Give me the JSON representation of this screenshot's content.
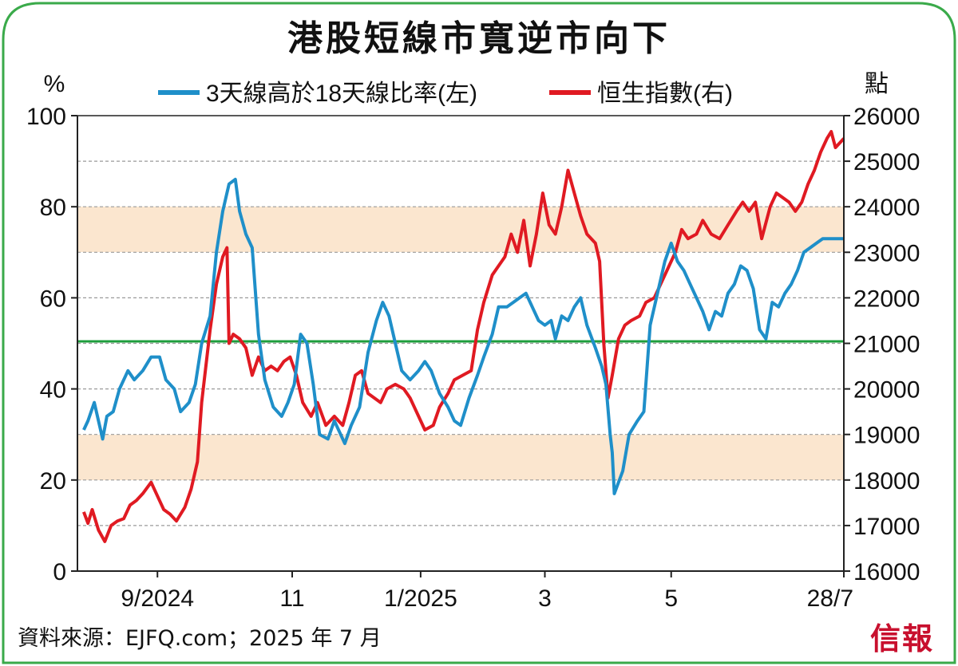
{
  "title": "港股短線市寬逆市向下",
  "source": "資料來源：EJFQ.com；2025 年 7 月",
  "brand": "信報",
  "chart_data": {
    "type": "line",
    "left_unit": "%",
    "right_unit": "點",
    "ylim_left": [
      0,
      100
    ],
    "ylim_right": [
      16000,
      26000
    ],
    "yticks_left": [
      "0",
      "20",
      "40",
      "60",
      "80",
      "100"
    ],
    "yticks_right": [
      "16000",
      "17000",
      "18000",
      "19000",
      "20000",
      "21000",
      "22000",
      "23000",
      "24000",
      "25000",
      "26000"
    ],
    "xticks": [
      "9/2024",
      "11",
      "1/2025",
      "3",
      "5",
      "28/7"
    ],
    "bands_left": [
      [
        20,
        30
      ],
      [
        70,
        80
      ]
    ],
    "reference_line_left": 50.5,
    "colors": {
      "breadth": "#1f8fc9",
      "hsi": "#e01a22",
      "reference": "#1e9e3c",
      "band": "#fbe6cf",
      "frame": "#3aaa4a"
    },
    "series": [
      {
        "name": "3天線高於18天線比率(左)",
        "axis": "left",
        "points": [
          [
            "2024-08-01",
            31
          ],
          [
            "2024-08-03",
            33
          ],
          [
            "2024-08-06",
            37
          ],
          [
            "2024-08-10",
            29
          ],
          [
            "2024-08-12",
            34
          ],
          [
            "2024-08-15",
            35
          ],
          [
            "2024-08-18",
            40
          ],
          [
            "2024-08-22",
            44
          ],
          [
            "2024-08-25",
            42
          ],
          [
            "2024-08-29",
            44
          ],
          [
            "2024-09-02",
            47
          ],
          [
            "2024-09-06",
            47
          ],
          [
            "2024-09-09",
            42
          ],
          [
            "2024-09-13",
            40
          ],
          [
            "2024-09-16",
            35
          ],
          [
            "2024-09-20",
            37
          ],
          [
            "2024-09-23",
            41
          ],
          [
            "2024-09-26",
            50
          ],
          [
            "2024-09-30",
            56
          ],
          [
            "2024-10-03",
            70
          ],
          [
            "2024-10-06",
            79
          ],
          [
            "2024-10-09",
            85
          ],
          [
            "2024-10-12",
            86
          ],
          [
            "2024-10-14",
            79
          ],
          [
            "2024-10-17",
            74
          ],
          [
            "2024-10-20",
            71
          ],
          [
            "2024-10-23",
            52
          ],
          [
            "2024-10-26",
            42
          ],
          [
            "2024-10-30",
            36
          ],
          [
            "2024-11-03",
            34
          ],
          [
            "2024-11-06",
            37
          ],
          [
            "2024-11-09",
            41
          ],
          [
            "2024-11-12",
            52
          ],
          [
            "2024-11-15",
            50
          ],
          [
            "2024-11-18",
            41
          ],
          [
            "2024-11-21",
            30
          ],
          [
            "2024-11-25",
            29
          ],
          [
            "2024-11-28",
            33
          ],
          [
            "2024-12-01",
            30
          ],
          [
            "2024-12-03",
            28
          ],
          [
            "2024-12-06",
            32
          ],
          [
            "2024-12-10",
            36
          ],
          [
            "2024-12-14",
            48
          ],
          [
            "2024-12-18",
            55
          ],
          [
            "2024-12-21",
            59
          ],
          [
            "2024-12-24",
            56
          ],
          [
            "2024-12-27",
            50
          ],
          [
            "2024-12-30",
            44
          ],
          [
            "2025-01-03",
            42
          ],
          [
            "2025-01-07",
            44
          ],
          [
            "2025-01-10",
            46
          ],
          [
            "2025-01-13",
            44
          ],
          [
            "2025-01-17",
            39
          ],
          [
            "2025-01-21",
            36
          ],
          [
            "2025-01-24",
            33
          ],
          [
            "2025-01-27",
            32
          ],
          [
            "2025-01-31",
            38
          ],
          [
            "2025-02-04",
            43
          ],
          [
            "2025-02-07",
            47
          ],
          [
            "2025-02-11",
            52
          ],
          [
            "2025-02-14",
            58
          ],
          [
            "2025-02-18",
            58
          ],
          [
            "2025-02-21",
            59
          ],
          [
            "2025-02-24",
            60
          ],
          [
            "2025-02-27",
            61
          ],
          [
            "2025-03-02",
            58
          ],
          [
            "2025-03-05",
            55
          ],
          [
            "2025-03-08",
            54
          ],
          [
            "2025-03-11",
            55
          ],
          [
            "2025-03-13",
            51
          ],
          [
            "2025-03-16",
            56
          ],
          [
            "2025-03-19",
            55
          ],
          [
            "2025-03-22",
            58
          ],
          [
            "2025-03-25",
            60
          ],
          [
            "2025-03-28",
            54
          ],
          [
            "2025-04-01",
            49
          ],
          [
            "2025-04-04",
            45
          ],
          [
            "2025-04-06",
            41
          ],
          [
            "2025-04-08",
            30
          ],
          [
            "2025-04-09",
            26
          ],
          [
            "2025-04-10",
            17
          ],
          [
            "2025-04-14",
            22
          ],
          [
            "2025-04-17",
            30
          ],
          [
            "2025-04-21",
            33
          ],
          [
            "2025-04-24",
            35
          ],
          [
            "2025-04-27",
            54
          ],
          [
            "2025-05-01",
            62
          ],
          [
            "2025-05-04",
            68
          ],
          [
            "2025-05-07",
            72
          ],
          [
            "2025-05-10",
            68
          ],
          [
            "2025-05-13",
            66
          ],
          [
            "2025-05-16",
            63
          ],
          [
            "2025-05-19",
            60
          ],
          [
            "2025-05-22",
            57
          ],
          [
            "2025-05-25",
            53
          ],
          [
            "2025-05-28",
            57
          ],
          [
            "2025-05-31",
            56
          ],
          [
            "2025-06-03",
            61
          ],
          [
            "2025-06-06",
            63
          ],
          [
            "2025-06-09",
            67
          ],
          [
            "2025-06-12",
            66
          ],
          [
            "2025-06-15",
            62
          ],
          [
            "2025-06-18",
            53
          ],
          [
            "2025-06-21",
            51
          ],
          [
            "2025-06-24",
            59
          ],
          [
            "2025-06-27",
            58
          ],
          [
            "2025-06-30",
            61
          ],
          [
            "2025-07-03",
            63
          ],
          [
            "2025-07-06",
            66
          ],
          [
            "2025-07-09",
            70
          ],
          [
            "2025-07-12",
            71
          ],
          [
            "2025-07-15",
            72
          ],
          [
            "2025-07-18",
            73
          ],
          [
            "2025-07-21",
            73
          ],
          [
            "2025-07-24",
            73
          ],
          [
            "2025-07-28",
            73
          ]
        ]
      },
      {
        "name": "恒生指數(右)",
        "axis": "right",
        "points": [
          [
            "2024-08-01",
            17300
          ],
          [
            "2024-08-03",
            17050
          ],
          [
            "2024-08-05",
            17350
          ],
          [
            "2024-08-08",
            16900
          ],
          [
            "2024-08-11",
            16650
          ],
          [
            "2024-08-14",
            17000
          ],
          [
            "2024-08-17",
            17100
          ],
          [
            "2024-08-20",
            17150
          ],
          [
            "2024-08-23",
            17450
          ],
          [
            "2024-08-26",
            17550
          ],
          [
            "2024-08-29",
            17700
          ],
          [
            "2024-09-02",
            17950
          ],
          [
            "2024-09-05",
            17650
          ],
          [
            "2024-09-08",
            17350
          ],
          [
            "2024-09-11",
            17250
          ],
          [
            "2024-09-14",
            17100
          ],
          [
            "2024-09-18",
            17400
          ],
          [
            "2024-09-21",
            17800
          ],
          [
            "2024-09-24",
            18400
          ],
          [
            "2024-09-26",
            19700
          ],
          [
            "2024-09-30",
            21300
          ],
          [
            "2024-10-03",
            22300
          ],
          [
            "2024-10-06",
            22900
          ],
          [
            "2024-10-08",
            23100
          ],
          [
            "2024-10-09",
            21000
          ],
          [
            "2024-10-11",
            21200
          ],
          [
            "2024-10-14",
            21100
          ],
          [
            "2024-10-17",
            20900
          ],
          [
            "2024-10-20",
            20300
          ],
          [
            "2024-10-23",
            20700
          ],
          [
            "2024-10-26",
            20400
          ],
          [
            "2024-10-29",
            20500
          ],
          [
            "2024-11-01",
            20400
          ],
          [
            "2024-11-04",
            20600
          ],
          [
            "2024-11-07",
            20700
          ],
          [
            "2024-11-10",
            20300
          ],
          [
            "2024-11-13",
            19700
          ],
          [
            "2024-11-17",
            19400
          ],
          [
            "2024-11-20",
            19700
          ],
          [
            "2024-11-24",
            19200
          ],
          [
            "2024-11-28",
            19400
          ],
          [
            "2024-12-02",
            19200
          ],
          [
            "2024-12-05",
            19700
          ],
          [
            "2024-12-08",
            20300
          ],
          [
            "2024-12-11",
            20400
          ],
          [
            "2024-12-14",
            19900
          ],
          [
            "2024-12-17",
            19800
          ],
          [
            "2024-12-20",
            19700
          ],
          [
            "2024-12-23",
            20000
          ],
          [
            "2024-12-27",
            20100
          ],
          [
            "2024-12-31",
            20000
          ],
          [
            "2025-01-03",
            19800
          ],
          [
            "2025-01-07",
            19400
          ],
          [
            "2025-01-10",
            19100
          ],
          [
            "2025-01-14",
            19200
          ],
          [
            "2025-01-17",
            19600
          ],
          [
            "2025-01-21",
            19900
          ],
          [
            "2025-01-24",
            20200
          ],
          [
            "2025-01-28",
            20300
          ],
          [
            "2025-02-01",
            20400
          ],
          [
            "2025-02-04",
            21300
          ],
          [
            "2025-02-07",
            21900
          ],
          [
            "2025-02-11",
            22500
          ],
          [
            "2025-02-14",
            22700
          ],
          [
            "2025-02-17",
            22900
          ],
          [
            "2025-02-20",
            23400
          ],
          [
            "2025-02-23",
            23000
          ],
          [
            "2025-02-26",
            23700
          ],
          [
            "2025-03-01",
            22700
          ],
          [
            "2025-03-04",
            23400
          ],
          [
            "2025-03-07",
            24300
          ],
          [
            "2025-03-10",
            23600
          ],
          [
            "2025-03-13",
            23400
          ],
          [
            "2025-03-16",
            24000
          ],
          [
            "2025-03-19",
            24800
          ],
          [
            "2025-03-22",
            24300
          ],
          [
            "2025-03-25",
            23800
          ],
          [
            "2025-03-28",
            23400
          ],
          [
            "2025-04-01",
            23200
          ],
          [
            "2025-04-03",
            22800
          ],
          [
            "2025-04-05",
            21000
          ],
          [
            "2025-04-07",
            19800
          ],
          [
            "2025-04-09",
            20300
          ],
          [
            "2025-04-12",
            21100
          ],
          [
            "2025-04-15",
            21400
          ],
          [
            "2025-04-18",
            21500
          ],
          [
            "2025-04-22",
            21600
          ],
          [
            "2025-04-25",
            21900
          ],
          [
            "2025-04-29",
            22000
          ],
          [
            "2025-05-02",
            22300
          ],
          [
            "2025-05-06",
            22700
          ],
          [
            "2025-05-09",
            23000
          ],
          [
            "2025-05-12",
            23500
          ],
          [
            "2025-05-15",
            23300
          ],
          [
            "2025-05-19",
            23400
          ],
          [
            "2025-05-22",
            23700
          ],
          [
            "2025-05-26",
            23400
          ],
          [
            "2025-05-30",
            23300
          ],
          [
            "2025-06-03",
            23600
          ],
          [
            "2025-06-07",
            23900
          ],
          [
            "2025-06-10",
            24100
          ],
          [
            "2025-06-13",
            23900
          ],
          [
            "2025-06-16",
            24100
          ],
          [
            "2025-06-19",
            23300
          ],
          [
            "2025-06-23",
            24000
          ],
          [
            "2025-06-26",
            24300
          ],
          [
            "2025-06-29",
            24200
          ],
          [
            "2025-07-02",
            24100
          ],
          [
            "2025-07-05",
            23900
          ],
          [
            "2025-07-08",
            24100
          ],
          [
            "2025-07-11",
            24500
          ],
          [
            "2025-07-14",
            24800
          ],
          [
            "2025-07-17",
            25200
          ],
          [
            "2025-07-20",
            25500
          ],
          [
            "2025-07-22",
            25650
          ],
          [
            "2025-07-24",
            25300
          ],
          [
            "2025-07-28",
            25500
          ]
        ]
      }
    ]
  }
}
